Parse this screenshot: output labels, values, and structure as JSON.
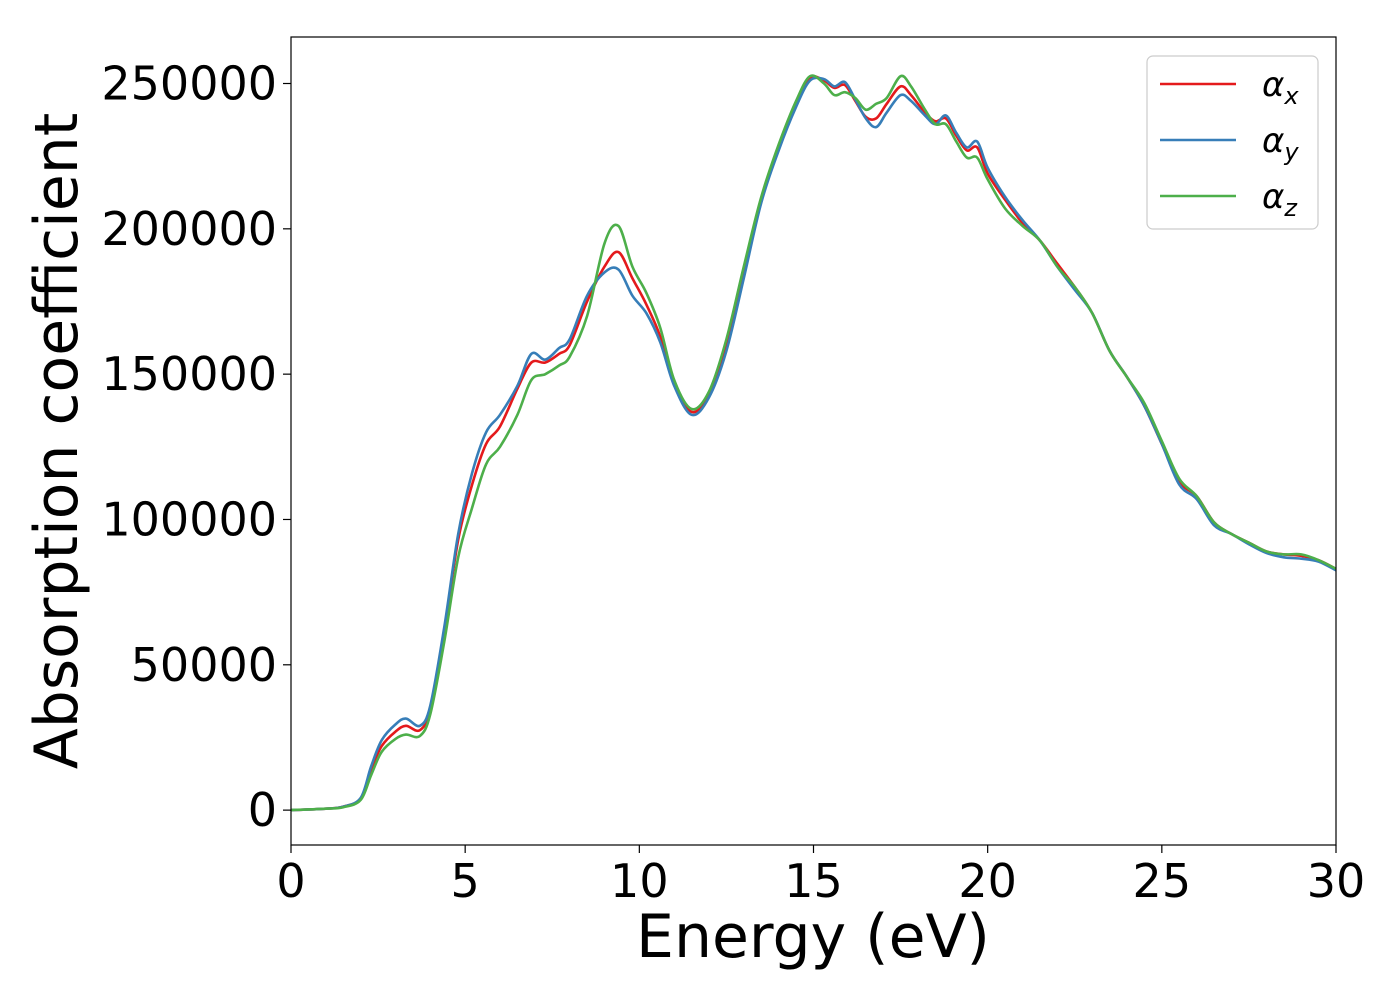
{
  "chart_data": {
    "type": "line",
    "title": "",
    "xlabel": "Energy (eV)",
    "ylabel": "Absorption coefficient",
    "xlim": [
      0,
      30
    ],
    "ylim": [
      -12000,
      266000
    ],
    "xticks": [
      0,
      5,
      10,
      15,
      20,
      25,
      30
    ],
    "yticks": [
      0,
      50000,
      100000,
      150000,
      200000,
      250000
    ],
    "grid": false,
    "legend": "top-right",
    "x": [
      0,
      1,
      1.5,
      2,
      2.3,
      2.6,
      3.0,
      3.3,
      3.7,
      4.0,
      4.4,
      4.8,
      5.2,
      5.6,
      6.0,
      6.5,
      6.9,
      7.3,
      7.7,
      8.0,
      8.5,
      9.0,
      9.4,
      9.8,
      10.2,
      10.6,
      11.0,
      11.5,
      12.0,
      12.5,
      13.0,
      13.5,
      14.0,
      14.5,
      14.9,
      15.3,
      15.6,
      15.9,
      16.2,
      16.5,
      16.8,
      17.1,
      17.5,
      17.8,
      18.2,
      18.5,
      18.8,
      19.1,
      19.4,
      19.7,
      20.0,
      20.5,
      21.0,
      21.5,
      22.0,
      22.5,
      23.0,
      23.5,
      24.0,
      24.5,
      25.0,
      25.5,
      26.0,
      26.5,
      27.0,
      27.5,
      28.0,
      28.5,
      29.0,
      29.5,
      30.0
    ],
    "series": [
      {
        "name": "αx",
        "subscript": "x",
        "color": "#e41a1c",
        "values": [
          0,
          500,
          1200,
          4000,
          14000,
          22000,
          27000,
          29000,
          27500,
          35000,
          62000,
          93000,
          112000,
          126000,
          132000,
          145000,
          154000,
          154000,
          157000,
          160000,
          175000,
          187000,
          192000,
          183000,
          174000,
          163000,
          147000,
          137000,
          143000,
          160000,
          185000,
          210000,
          228000,
          243000,
          252000,
          251000,
          248500,
          249500,
          244000,
          238500,
          238000,
          243000,
          249000,
          246000,
          240000,
          237000,
          238000,
          232000,
          227000,
          228000,
          219000,
          210000,
          202000,
          196000,
          188000,
          180000,
          171000,
          158000,
          149000,
          139000,
          126000,
          113000,
          108000,
          99000,
          95000,
          92000,
          89000,
          88000,
          87500,
          86000,
          83000
        ]
      },
      {
        "name": "αy",
        "subscript": "y",
        "color": "#377eb8",
        "values": [
          0,
          500,
          1200,
          4200,
          15000,
          24000,
          29500,
          31500,
          29000,
          36000,
          63000,
          95000,
          116000,
          130000,
          136000,
          146000,
          157000,
          155000,
          159000,
          162000,
          177000,
          185000,
          186000,
          177000,
          171000,
          161000,
          146000,
          136000,
          142000,
          158000,
          183000,
          209000,
          227000,
          242000,
          251000,
          251500,
          249000,
          250500,
          244500,
          238000,
          235000,
          240000,
          246000,
          244000,
          239000,
          236000,
          239000,
          233000,
          228000,
          230000,
          221000,
          211000,
          203000,
          196000,
          187000,
          179000,
          171000,
          158000,
          149000,
          139000,
          126000,
          112000,
          107000,
          98000,
          95000,
          91500,
          88500,
          87000,
          86500,
          85500,
          82500
        ]
      },
      {
        "name": "αz",
        "subscript": "z",
        "color": "#4daf4a",
        "values": [
          0,
          500,
          1000,
          3500,
          12000,
          20000,
          24500,
          26000,
          25500,
          33000,
          58000,
          87000,
          104000,
          119000,
          125000,
          136000,
          148000,
          150000,
          153000,
          156000,
          170000,
          195000,
          201000,
          187000,
          178000,
          166000,
          148000,
          138000,
          144000,
          162000,
          187000,
          211000,
          229000,
          244000,
          252500,
          250000,
          246000,
          247000,
          245000,
          241000,
          243000,
          245000,
          252500,
          249000,
          241000,
          236000,
          236000,
          230000,
          224500,
          224500,
          217000,
          207000,
          201000,
          196000,
          187000,
          180000,
          171000,
          158000,
          149000,
          140000,
          127000,
          114000,
          108000,
          99000,
          95000,
          92000,
          89000,
          88000,
          88000,
          86000,
          83000
        ]
      }
    ]
  }
}
